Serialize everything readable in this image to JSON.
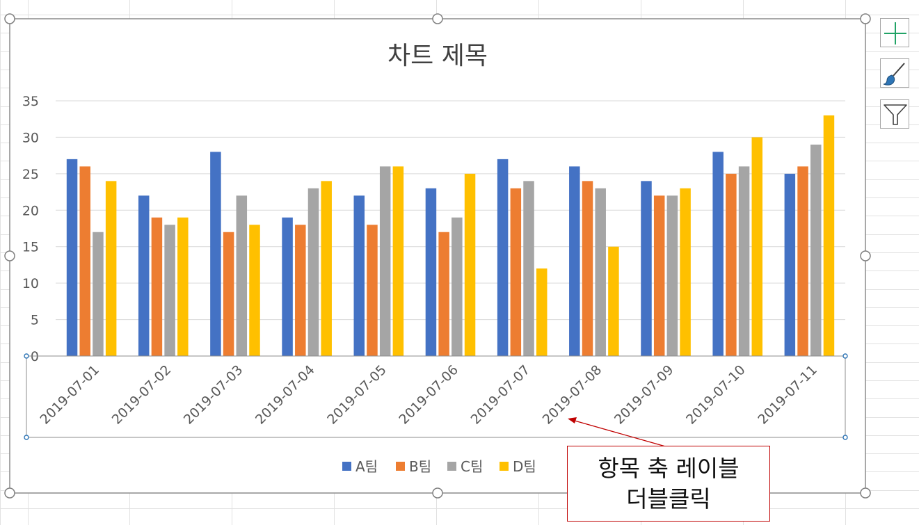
{
  "chart_data": {
    "type": "bar",
    "title": "차트 제목",
    "categories": [
      "2019-07-01",
      "2019-07-02",
      "2019-07-03",
      "2019-07-04",
      "2019-07-05",
      "2019-07-06",
      "2019-07-07",
      "2019-07-08",
      "2019-07-09",
      "2019-07-10",
      "2019-07-11"
    ],
    "series": [
      {
        "name": "A팀",
        "color": "#4472c4",
        "values": [
          27,
          22,
          28,
          19,
          22,
          23,
          27,
          26,
          24,
          28,
          25
        ]
      },
      {
        "name": "B팀",
        "color": "#ed7d31",
        "values": [
          26,
          19,
          17,
          18,
          18,
          17,
          23,
          24,
          22,
          25,
          26
        ]
      },
      {
        "name": "C팀",
        "color": "#a5a5a5",
        "values": [
          17,
          18,
          22,
          23,
          26,
          19,
          24,
          23,
          22,
          26,
          29
        ]
      },
      {
        "name": "D팀",
        "color": "#ffc000",
        "values": [
          24,
          19,
          18,
          24,
          26,
          25,
          12,
          15,
          23,
          30,
          33
        ]
      }
    ],
    "ylim": [
      0,
      35
    ],
    "yticks": [
      "0",
      "5",
      "10",
      "15",
      "20",
      "25",
      "30",
      "35"
    ],
    "grid": true,
    "legend_position": "bottom",
    "category_axis_selected": true
  },
  "side_buttons": [
    {
      "name": "chart-elements-button",
      "icon": "plus-icon"
    },
    {
      "name": "chart-styles-button",
      "icon": "paintbrush-icon"
    },
    {
      "name": "chart-filters-button",
      "icon": "funnel-icon"
    }
  ],
  "callout": {
    "line1": "항목 축 레이블",
    "line2": "더블클릭"
  }
}
